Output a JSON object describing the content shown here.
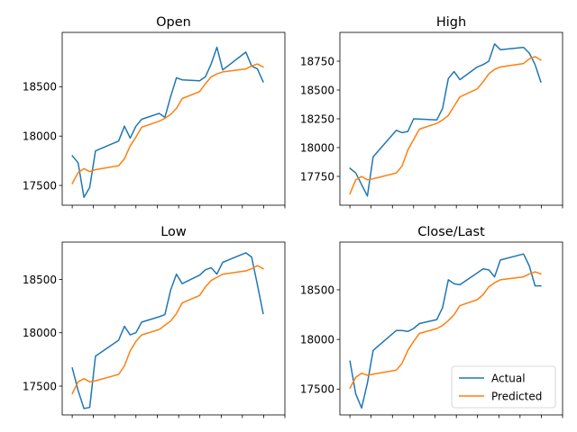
{
  "legend": {
    "entries": [
      {
        "label": "Actual",
        "color": "#1f77b4"
      },
      {
        "label": "Predicted",
        "color": "#ff7f0e"
      }
    ],
    "placement": "lower-right",
    "panel": 3
  },
  "chart_data": [
    {
      "type": "line",
      "title": "Open",
      "xlabel": "",
      "ylabel": "",
      "x": [
        0,
        1,
        2,
        3,
        4,
        5,
        6,
        7,
        8,
        9,
        10,
        11,
        12,
        13,
        14,
        15,
        16,
        17,
        18,
        19,
        20,
        21,
        22,
        23,
        24,
        25,
        26,
        27,
        28,
        29,
        30,
        31,
        32,
        33,
        34,
        35
      ],
      "ylim": [
        17300,
        19050
      ],
      "yticks": [
        17500,
        18000,
        18500
      ],
      "series": [
        {
          "name": "Actual",
          "color": "#1f77b4",
          "values": [
            17800,
            17730,
            17380,
            17480,
            17850,
            null,
            null,
            null,
            17950,
            18100,
            17980,
            18100,
            18170,
            null,
            null,
            18230,
            18190,
            18400,
            18590,
            18570,
            null,
            null,
            18560,
            18600,
            18730,
            18900,
            18670,
            null,
            null,
            null,
            18850,
            18710,
            18680,
            18550,
            null,
            null
          ]
        },
        {
          "name": "Predicted",
          "color": "#ff7f0e",
          "values": [
            17520,
            17630,
            17670,
            17640,
            17660,
            null,
            null,
            null,
            17700,
            17770,
            17900,
            17990,
            18090,
            null,
            null,
            18150,
            18180,
            18220,
            18280,
            18380,
            null,
            null,
            18450,
            18530,
            18600,
            18630,
            18650,
            null,
            null,
            null,
            18680,
            18710,
            18730,
            18700,
            null,
            null
          ]
        }
      ]
    },
    {
      "type": "line",
      "title": "High",
      "xlabel": "",
      "ylabel": "",
      "x": [
        0,
        1,
        2,
        3,
        4,
        5,
        6,
        7,
        8,
        9,
        10,
        11,
        12,
        13,
        14,
        15,
        16,
        17,
        18,
        19,
        20,
        21,
        22,
        23,
        24,
        25,
        26,
        27,
        28,
        29,
        30,
        31,
        32,
        33,
        34,
        35
      ],
      "ylim": [
        17500,
        19000
      ],
      "yticks": [
        17750,
        18000,
        18250,
        18500,
        18750
      ],
      "series": [
        {
          "name": "Actual",
          "color": "#1f77b4",
          "values": [
            17820,
            17780,
            null,
            17580,
            17920,
            null,
            null,
            null,
            18150,
            18130,
            18140,
            18250,
            null,
            null,
            null,
            18240,
            18340,
            18600,
            18660,
            18590,
            null,
            null,
            18700,
            18720,
            18750,
            18900,
            18850,
            null,
            null,
            null,
            18870,
            18820,
            18720,
            18570,
            null,
            null
          ]
        },
        {
          "name": "Predicted",
          "color": "#ff7f0e",
          "values": [
            17600,
            17720,
            17750,
            17720,
            17730,
            null,
            null,
            null,
            17780,
            17840,
            17980,
            18070,
            18160,
            null,
            null,
            18210,
            18240,
            18280,
            18360,
            18440,
            null,
            null,
            18510,
            18570,
            18640,
            18680,
            18700,
            null,
            null,
            null,
            18730,
            18770,
            18790,
            18760,
            null,
            null
          ]
        }
      ]
    },
    {
      "type": "line",
      "title": "Low",
      "xlabel": "",
      "ylabel": "",
      "x": [
        0,
        1,
        2,
        3,
        4,
        5,
        6,
        7,
        8,
        9,
        10,
        11,
        12,
        13,
        14,
        15,
        16,
        17,
        18,
        19,
        20,
        21,
        22,
        23,
        24,
        25,
        26,
        27,
        28,
        29,
        30,
        31,
        32,
        33,
        34,
        35
      ],
      "ylim": [
        17230,
        18850
      ],
      "yticks": [
        17500,
        18000,
        18500
      ],
      "series": [
        {
          "name": "Actual",
          "color": "#1f77b4",
          "values": [
            17670,
            17460,
            17290,
            17300,
            17780,
            null,
            null,
            null,
            17930,
            18060,
            17980,
            18000,
            18100,
            null,
            null,
            18150,
            18170,
            18400,
            18550,
            18460,
            null,
            null,
            18540,
            18590,
            18610,
            18550,
            18660,
            null,
            null,
            null,
            18750,
            18710,
            18450,
            18180,
            null,
            null
          ]
        },
        {
          "name": "Predicted",
          "color": "#ff7f0e",
          "values": [
            17430,
            17540,
            17570,
            17540,
            17550,
            null,
            null,
            null,
            17610,
            17690,
            17830,
            17920,
            17980,
            null,
            null,
            18030,
            18070,
            18110,
            18180,
            18280,
            null,
            null,
            18350,
            18430,
            18490,
            18520,
            18550,
            null,
            null,
            null,
            18580,
            18600,
            18630,
            18600,
            null,
            null
          ]
        }
      ]
    },
    {
      "type": "line",
      "title": "Close/Last",
      "xlabel": "",
      "ylabel": "",
      "x": [
        0,
        1,
        2,
        3,
        4,
        5,
        6,
        7,
        8,
        9,
        10,
        11,
        12,
        13,
        14,
        15,
        16,
        17,
        18,
        19,
        20,
        21,
        22,
        23,
        24,
        25,
        26,
        27,
        28,
        29,
        30,
        31,
        32,
        33,
        34,
        35
      ],
      "ylim": [
        17240,
        18980
      ],
      "yticks": [
        17500,
        18000,
        18500
      ],
      "series": [
        {
          "name": "Actual",
          "color": "#1f77b4",
          "values": [
            17780,
            17450,
            17310,
            17560,
            17890,
            null,
            null,
            null,
            18090,
            18090,
            18080,
            18110,
            18160,
            null,
            null,
            18200,
            18320,
            18600,
            18560,
            18550,
            null,
            null,
            18670,
            18710,
            18700,
            18630,
            18800,
            null,
            null,
            null,
            18860,
            18740,
            18540,
            18540,
            null,
            null
          ]
        },
        {
          "name": "Predicted",
          "color": "#ff7f0e",
          "values": [
            17510,
            17620,
            17660,
            17640,
            17650,
            null,
            null,
            null,
            17690,
            17760,
            17890,
            17980,
            18060,
            null,
            null,
            18110,
            18140,
            18190,
            18250,
            18340,
            null,
            null,
            18400,
            18450,
            18530,
            18570,
            18600,
            null,
            null,
            null,
            18630,
            18660,
            18680,
            18660,
            null,
            null
          ]
        }
      ]
    }
  ]
}
